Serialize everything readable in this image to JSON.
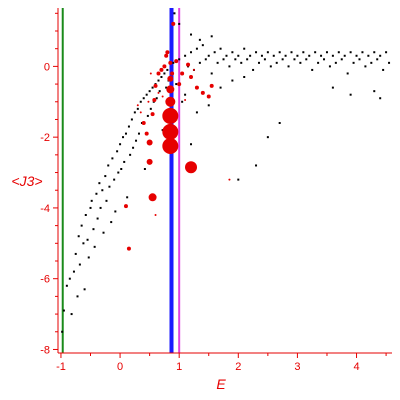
{
  "chart_data": {
    "type": "scatter",
    "xlabel": "E",
    "ylabel": "<J3>",
    "xlim": [
      -1.05,
      4.6
    ],
    "ylim": [
      -8.1,
      1.65
    ],
    "xticks": [
      -1,
      0,
      1,
      2,
      3,
      4
    ],
    "yticks": [
      0,
      -2,
      -4,
      -6,
      -8
    ],
    "grid": false,
    "colors": {
      "axes": "#e60000",
      "black_points": "#000000",
      "red_points": "#e60000"
    },
    "vertical_lines": [
      {
        "x": -0.97,
        "color": "#1a8a1a",
        "width": 2
      },
      {
        "x": 0.87,
        "color": "#1a1aff",
        "width": 4
      },
      {
        "x": 1.0,
        "color": "#e040e0",
        "width": 2
      }
    ],
    "series": [
      {
        "color": "#000000",
        "marker": "dot",
        "points": [
          [
            -0.98,
            -7.5
          ],
          [
            -0.95,
            -6.9
          ],
          [
            -0.9,
            -6.2
          ],
          [
            -0.85,
            -6.0
          ],
          [
            -0.82,
            -7.0
          ],
          [
            -0.78,
            -5.8
          ],
          [
            -0.75,
            -5.3
          ],
          [
            -0.72,
            -6.5
          ],
          [
            -0.7,
            -4.8
          ],
          [
            -0.68,
            -5.6
          ],
          [
            -0.65,
            -4.5
          ],
          [
            -0.62,
            -5.0
          ],
          [
            -0.6,
            -6.3
          ],
          [
            -0.58,
            -4.2
          ],
          [
            -0.55,
            -4.9
          ],
          [
            -0.53,
            -5.4
          ],
          [
            -0.5,
            -4.0
          ],
          [
            -0.48,
            -3.8
          ],
          [
            -0.45,
            -4.6
          ],
          [
            -0.43,
            -5.1
          ],
          [
            -0.4,
            -3.6
          ],
          [
            -0.38,
            -4.3
          ],
          [
            -0.35,
            -3.3
          ],
          [
            -0.33,
            -4.0
          ],
          [
            -0.3,
            -3.5
          ],
          [
            -0.28,
            -4.7
          ],
          [
            -0.25,
            -3.1
          ],
          [
            -0.23,
            -3.8
          ],
          [
            -0.2,
            -2.8
          ],
          [
            -0.18,
            -3.4
          ],
          [
            -0.15,
            -4.4
          ],
          [
            -0.13,
            -2.6
          ],
          [
            -0.1,
            -3.2
          ],
          [
            -0.08,
            -4.1
          ],
          [
            -0.05,
            -2.4
          ],
          [
            -0.03,
            -3.0
          ],
          [
            0.0,
            -2.2
          ],
          [
            0.02,
            -2.9
          ],
          [
            0.05,
            -2.0
          ],
          [
            0.07,
            -2.7
          ],
          [
            0.1,
            -1.9
          ],
          [
            0.12,
            -3.7
          ],
          [
            0.15,
            -1.7
          ],
          [
            0.17,
            -2.5
          ],
          [
            0.2,
            -1.5
          ],
          [
            0.22,
            -2.3
          ],
          [
            0.25,
            -1.3
          ],
          [
            0.27,
            -2.1
          ],
          [
            0.3,
            -1.2
          ],
          [
            0.32,
            -1.9
          ],
          [
            0.35,
            -1.0
          ],
          [
            0.37,
            -1.6
          ],
          [
            0.4,
            -0.9
          ],
          [
            0.42,
            -2.9
          ],
          [
            0.45,
            -0.8
          ],
          [
            0.47,
            -1.4
          ],
          [
            0.5,
            -0.7
          ],
          [
            0.52,
            -1.2
          ],
          [
            0.55,
            -0.6
          ],
          [
            0.57,
            -1.0
          ],
          [
            0.6,
            -0.5
          ],
          [
            0.62,
            -0.9
          ],
          [
            0.65,
            -0.4
          ],
          [
            0.67,
            -0.7
          ],
          [
            0.7,
            -0.3
          ],
          [
            0.72,
            -1.8
          ],
          [
            0.75,
            -0.2
          ],
          [
            0.78,
            -0.6
          ],
          [
            0.8,
            -0.1
          ],
          [
            0.82,
            -0.4
          ],
          [
            0.85,
            -0.3
          ],
          [
            0.9,
            0.1
          ],
          [
            0.95,
            -0.5
          ],
          [
            1.0,
            0.2
          ],
          [
            1.05,
            -0.2
          ],
          [
            1.1,
            0.3
          ],
          [
            1.15,
            0.0
          ],
          [
            1.2,
            0.4
          ],
          [
            1.25,
            -0.1
          ],
          [
            1.3,
            0.5
          ],
          [
            1.35,
            0.1
          ],
          [
            1.4,
            0.6
          ],
          [
            1.45,
            0.2
          ],
          [
            1.5,
            0.3
          ],
          [
            1.55,
            -0.2
          ],
          [
            1.6,
            0.4
          ],
          [
            1.65,
            0.1
          ],
          [
            1.7,
            0.5
          ],
          [
            1.75,
            0.2
          ],
          [
            1.8,
            0.3
          ],
          [
            1.85,
            0.0
          ],
          [
            1.9,
            0.4
          ],
          [
            1.95,
            0.2
          ],
          [
            2.0,
            0.3
          ],
          [
            2.05,
            0.1
          ],
          [
            2.1,
            0.5
          ],
          [
            2.15,
            0.2
          ],
          [
            2.2,
            0.3
          ],
          [
            2.25,
            -0.1
          ],
          [
            2.3,
            0.4
          ],
          [
            2.35,
            0.1
          ],
          [
            2.4,
            0.3
          ],
          [
            2.45,
            0.2
          ],
          [
            2.5,
            0.4
          ],
          [
            2.55,
            0.0
          ],
          [
            2.6,
            0.3
          ],
          [
            2.65,
            0.1
          ],
          [
            2.7,
            0.4
          ],
          [
            2.75,
            0.2
          ],
          [
            2.8,
            0.3
          ],
          [
            2.85,
            0.0
          ],
          [
            2.9,
            0.4
          ],
          [
            2.95,
            0.2
          ],
          [
            3.0,
            0.3
          ],
          [
            3.05,
            0.1
          ],
          [
            3.1,
            0.4
          ],
          [
            3.15,
            0.2
          ],
          [
            3.2,
            0.3
          ],
          [
            3.25,
            -0.1
          ],
          [
            3.3,
            0.4
          ],
          [
            3.35,
            0.1
          ],
          [
            3.4,
            0.3
          ],
          [
            3.45,
            0.2
          ],
          [
            3.5,
            0.4
          ],
          [
            3.55,
            0.0
          ],
          [
            3.6,
            0.3
          ],
          [
            3.65,
            0.1
          ],
          [
            3.7,
            0.4
          ],
          [
            3.75,
            0.2
          ],
          [
            3.8,
            0.3
          ],
          [
            3.85,
            -0.2
          ],
          [
            3.9,
            0.4
          ],
          [
            3.95,
            0.1
          ],
          [
            4.0,
            0.3
          ],
          [
            4.05,
            0.2
          ],
          [
            4.1,
            0.4
          ],
          [
            4.15,
            0.0
          ],
          [
            4.2,
            0.3
          ],
          [
            4.25,
            0.1
          ],
          [
            4.3,
            0.4
          ],
          [
            4.35,
            0.2
          ],
          [
            4.4,
            0.3
          ],
          [
            4.45,
            -0.1
          ],
          [
            4.5,
            0.4
          ],
          [
            4.55,
            0.1
          ],
          [
            1.1,
            -0.8
          ],
          [
            1.3,
            -1.3
          ],
          [
            1.5,
            -1.1
          ],
          [
            1.7,
            -0.6
          ],
          [
            1.9,
            -0.4
          ],
          [
            2.1,
            -0.3
          ],
          [
            2.3,
            -2.8
          ],
          [
            2.5,
            -2.0
          ],
          [
            2.7,
            -1.6
          ],
          [
            1.2,
            -2.2
          ],
          [
            0.95,
            -1.5
          ],
          [
            1.05,
            -1.0
          ],
          [
            3.6,
            -0.6
          ],
          [
            3.9,
            -0.8
          ],
          [
            4.3,
            -0.7
          ],
          [
            4.4,
            -0.9
          ],
          [
            1.0,
            1.2
          ],
          [
            1.2,
            0.9
          ],
          [
            1.35,
            0.75
          ],
          [
            1.55,
            0.85
          ],
          [
            0.92,
            1.5
          ],
          [
            2.0,
            -3.2
          ]
        ]
      },
      {
        "color": "#e60000",
        "marker": "filled-circle",
        "points": [
          [
            0.85,
            -1.4,
            8
          ],
          [
            0.85,
            -1.85,
            8
          ],
          [
            0.85,
            -2.25,
            8
          ],
          [
            0.85,
            -1.0,
            5
          ],
          [
            0.85,
            -0.65,
            4
          ],
          [
            0.85,
            -0.35,
            3
          ],
          [
            0.85,
            0.1,
            2
          ],
          [
            1.2,
            -2.85,
            6
          ],
          [
            0.55,
            -3.7,
            4
          ],
          [
            0.5,
            -2.7,
            3
          ],
          [
            0.5,
            -2.15,
            3
          ],
          [
            0.4,
            -1.6,
            2
          ],
          [
            0.55,
            -1.35,
            2
          ],
          [
            0.58,
            -0.95,
            2
          ],
          [
            0.6,
            -0.55,
            2
          ],
          [
            0.65,
            -0.2,
            2
          ],
          [
            0.7,
            -0.1,
            2
          ],
          [
            0.75,
            0.0,
            2
          ],
          [
            0.78,
            0.3,
            2
          ],
          [
            0.8,
            0.4,
            2
          ],
          [
            0.88,
            -0.2,
            2
          ],
          [
            0.95,
            0.15,
            2
          ],
          [
            1.0,
            -0.5,
            2
          ],
          [
            1.05,
            -0.2,
            2
          ],
          [
            1.15,
            0.05,
            2
          ],
          [
            1.2,
            -0.3,
            2
          ],
          [
            1.3,
            -0.6,
            2
          ],
          [
            1.4,
            -0.75,
            2
          ],
          [
            1.5,
            -0.85,
            2
          ],
          [
            1.55,
            -0.55,
            2
          ],
          [
            0.9,
            1.2,
            2
          ],
          [
            0.45,
            -1.9,
            2
          ],
          [
            0.15,
            -5.15,
            2
          ],
          [
            0.1,
            -3.95,
            2
          ],
          [
            0.35,
            -1.3,
            1
          ],
          [
            0.48,
            -1.0,
            1
          ],
          [
            0.52,
            -0.2,
            1
          ],
          [
            0.72,
            -0.85,
            1
          ],
          [
            1.1,
            -0.95,
            1
          ],
          [
            1.25,
            -0.1,
            1
          ],
          [
            1.85,
            -3.2,
            1
          ],
          [
            0.6,
            -4.2,
            1
          ],
          [
            0.65,
            -0.75,
            1
          ],
          [
            0.3,
            -1.1,
            1
          ]
        ]
      }
    ]
  }
}
